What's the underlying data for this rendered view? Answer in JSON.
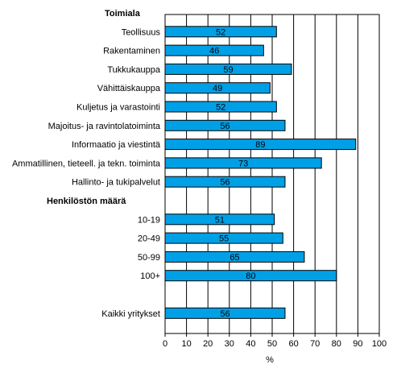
{
  "chart_data": {
    "type": "bar",
    "orientation": "horizontal",
    "groups": [
      "Toimiala",
      "Henkilöstön määrä"
    ],
    "categories": [
      "Teollisuus",
      "Rakentaminen",
      "Tukkukauppa",
      "Vähittäiskauppa",
      "Kuljetus ja varastointi",
      "Majoitus- ja ravintolatoiminta",
      "Informaatio ja viestintä",
      "Ammatillinen, tieteell. ja tekn. toiminta",
      "Hallinto- ja tukipalvelut",
      "10-19",
      "20-49",
      "50-99",
      "100+",
      "Kaikki yritykset"
    ],
    "values": [
      52,
      46,
      59,
      49,
      52,
      56,
      89,
      73,
      56,
      51,
      55,
      65,
      80,
      56
    ],
    "xlabel": "%",
    "xlim": [
      0,
      100
    ],
    "xticks": [
      0,
      10,
      20,
      30,
      40,
      50,
      60,
      70,
      80,
      90,
      100
    ],
    "grid": true,
    "bar_color": "#00a0e6",
    "bar_border_color": "#000000"
  }
}
